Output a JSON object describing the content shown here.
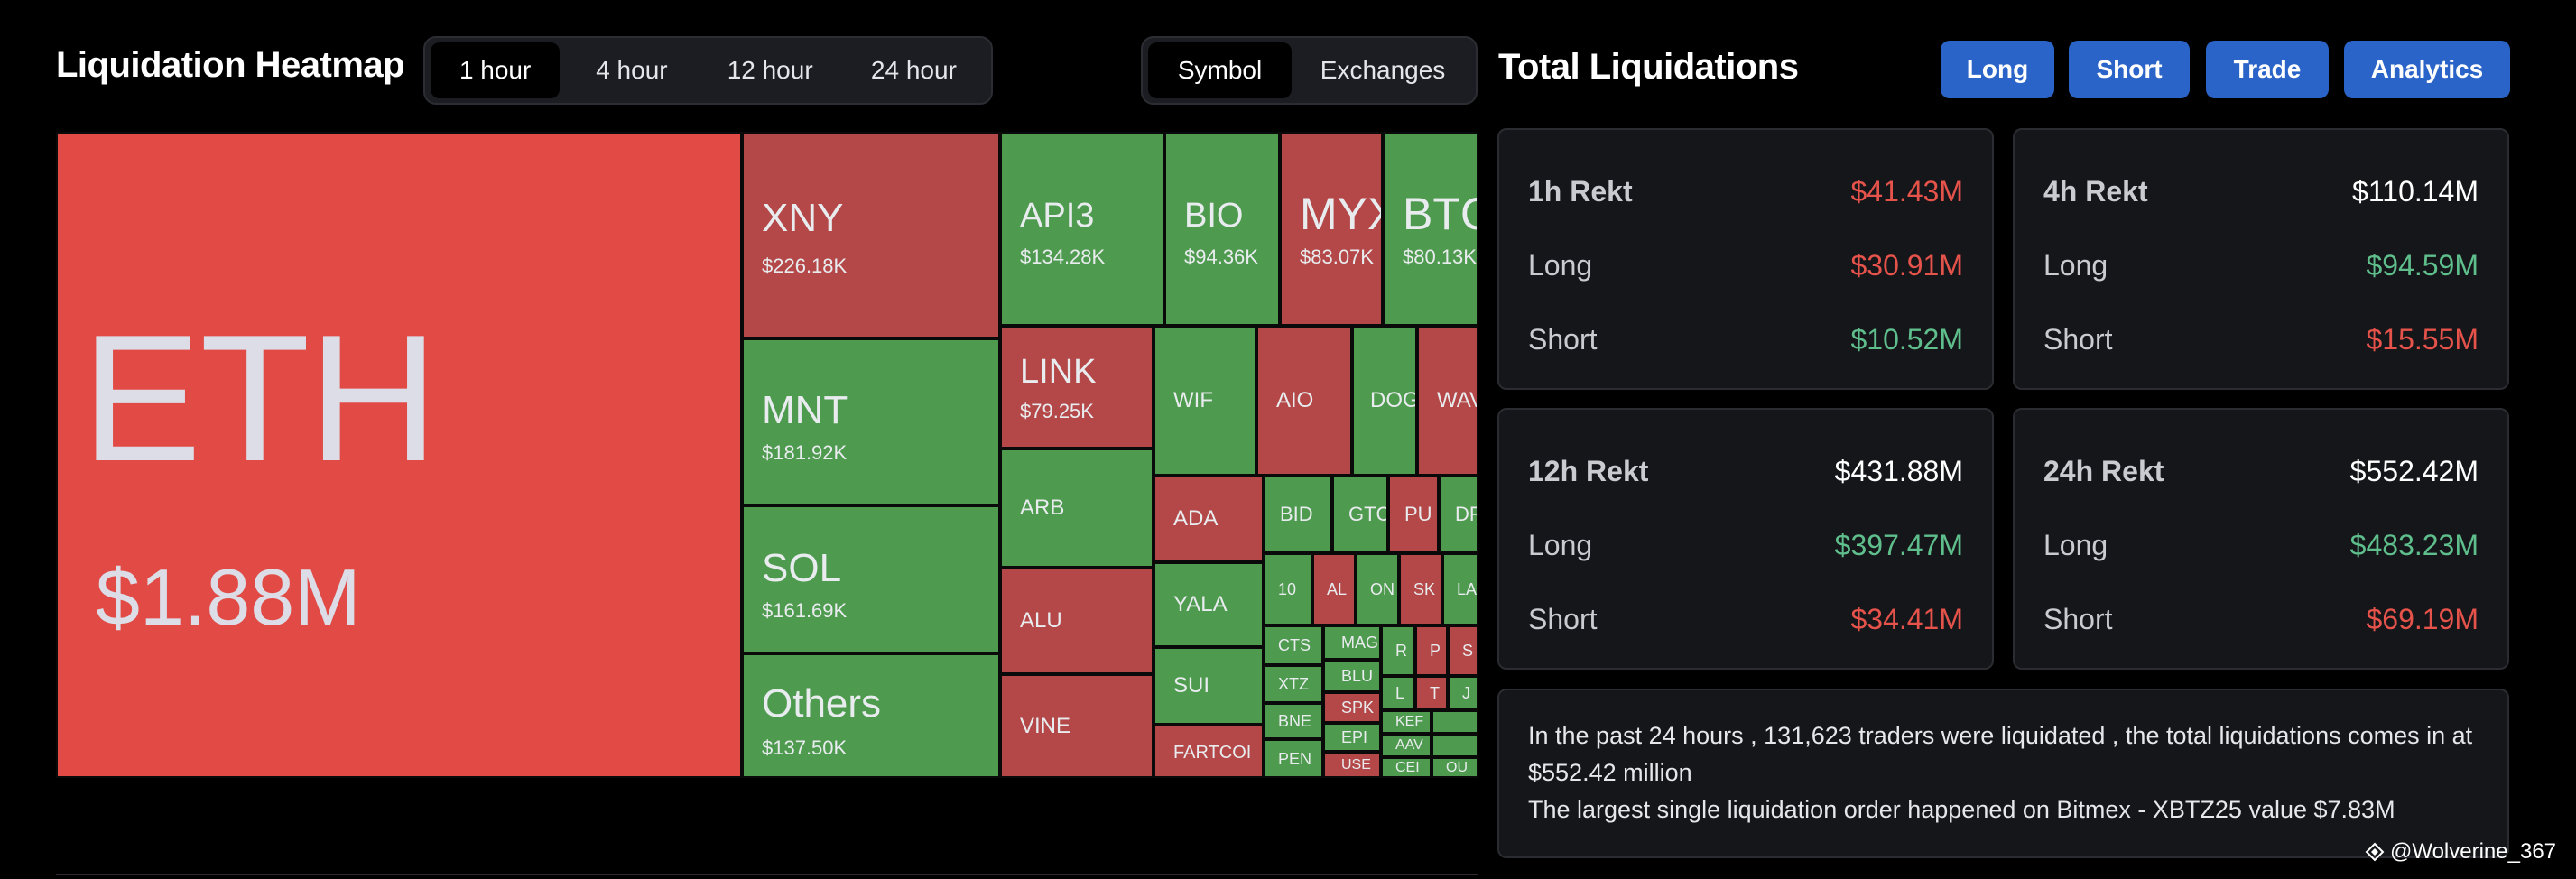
{
  "heatmap": {
    "title": "Liquidation Heatmap",
    "timeframes": [
      "1 hour",
      "4 hour",
      "12 hour",
      "24 hour"
    ],
    "active_timeframe": "1 hour",
    "modes": [
      "Symbol",
      "Exchanges"
    ],
    "active_mode": "Symbol",
    "colors": {
      "long_liq": "#b44848",
      "short_liq": "#4e9a4e",
      "eth": "#e14a45"
    },
    "tiles": {
      "eth": {
        "symbol": "ETH",
        "value": "$1.88M"
      },
      "xny": {
        "symbol": "XNY",
        "value": "$226.18K"
      },
      "mnt": {
        "symbol": "MNT",
        "value": "$181.92K"
      },
      "sol": {
        "symbol": "SOL",
        "value": "$161.69K"
      },
      "others": {
        "symbol": "Others",
        "value": "$137.50K"
      },
      "api3": {
        "symbol": "API3",
        "value": "$134.28K"
      },
      "bio": {
        "symbol": "BIO",
        "value": "$94.36K"
      },
      "myx": {
        "symbol": "MYX",
        "value": "$83.07K"
      },
      "btc": {
        "symbol": "BTC",
        "value": "$80.13K"
      },
      "link": {
        "symbol": "LINK",
        "value": "$79.25K"
      },
      "wif": {
        "symbol": "WIF"
      },
      "aio": {
        "symbol": "AIO"
      },
      "dog": {
        "symbol": "DOG"
      },
      "wav": {
        "symbol": "WAV"
      },
      "arb": {
        "symbol": "ARB"
      },
      "ada": {
        "symbol": "ADA"
      },
      "bid": {
        "symbol": "BID"
      },
      "gtc": {
        "symbol": "GTC"
      },
      "pu": {
        "symbol": "PU"
      },
      "dr": {
        "symbol": "DF"
      },
      "alu": {
        "symbol": "ALU"
      },
      "yala": {
        "symbol": "YALA"
      },
      "ten": {
        "symbol": "10"
      },
      "al": {
        "symbol": "AL"
      },
      "on": {
        "symbol": "ON"
      },
      "sk": {
        "symbol": "SK"
      },
      "la": {
        "symbol": "LA"
      },
      "sui": {
        "symbol": "SUI"
      },
      "cts": {
        "symbol": "CTS"
      },
      "mag": {
        "symbol": "MAG"
      },
      "r": {
        "symbol": "R"
      },
      "p": {
        "symbol": "P"
      },
      "s": {
        "symbol": "S"
      },
      "xtz": {
        "symbol": "XTZ"
      },
      "blu": {
        "symbol": "BLU"
      },
      "l": {
        "symbol": "L"
      },
      "t": {
        "symbol": "T"
      },
      "j": {
        "symbol": "J"
      },
      "vine": {
        "symbol": "VINE"
      },
      "spk": {
        "symbol": "SPK"
      },
      "bne": {
        "symbol": "BNE"
      },
      "ker": {
        "symbol": "KEF"
      },
      "epi": {
        "symbol": "EPI"
      },
      "fartcoin": {
        "symbol": "FARTCOI"
      },
      "pen": {
        "symbol": "PEN"
      },
      "aav": {
        "symbol": "AAV"
      },
      "use": {
        "symbol": "USE"
      },
      "cel": {
        "symbol": "CEI"
      },
      "ou": {
        "symbol": "OU"
      }
    }
  },
  "total": {
    "title": "Total Liquidations",
    "buttons": {
      "long": "Long",
      "short": "Short",
      "trade": "Trade",
      "analytics": "Analytics"
    },
    "cards": [
      {
        "label": "1h Rekt",
        "total": "$41.43M",
        "long_label": "Long",
        "long": "$30.91M",
        "short_label": "Short",
        "short": "$10.52M"
      },
      {
        "label": "4h Rekt",
        "total": "$110.14M",
        "long_label": "Long",
        "long": "$94.59M",
        "short_label": "Short",
        "short": "$15.55M"
      },
      {
        "label": "12h Rekt",
        "total": "$431.88M",
        "long_label": "Long",
        "long": "$397.47M",
        "short_label": "Short",
        "short": "$34.41M"
      },
      {
        "label": "24h Rekt",
        "total": "$552.42M",
        "long_label": "Long",
        "long": "$483.23M",
        "short_label": "Short",
        "short": "$69.19M"
      }
    ],
    "summary_line1": "In the past 24 hours , 131,623 traders were liquidated , the total liquidations comes in at $552.42 million",
    "summary_line2": "The largest single liquidation order happened on Bitmex - XBTZ25 value $7.83M"
  },
  "watermark": "@Wolverine_367",
  "watermark_icon": "binance-square-icon"
}
